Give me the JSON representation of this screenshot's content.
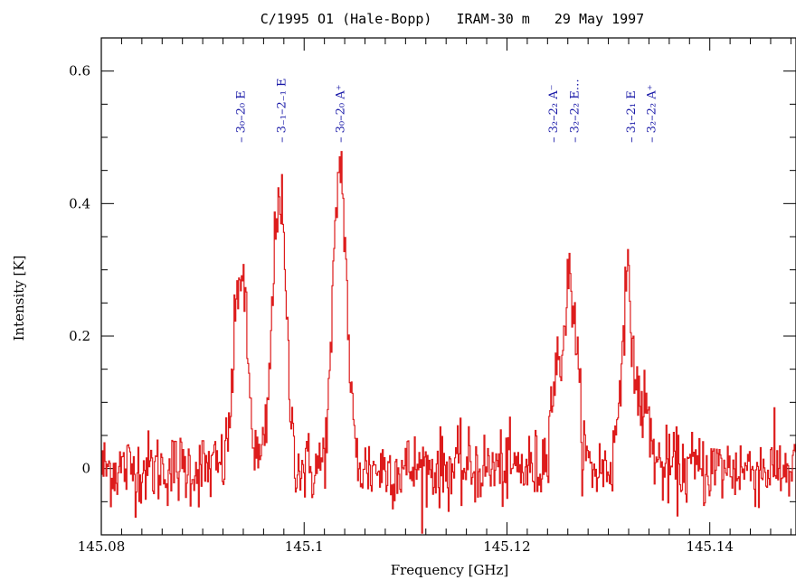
{
  "chart_data": {
    "type": "line",
    "title": "C/1995 O1 (Hale-Bopp)   IRAM-30 m   29 May 1997",
    "xlabel": "Frequency [GHz]",
    "ylabel": "Intensity [K]",
    "xlim": [
      145.08,
      145.1485
    ],
    "ylim": [
      -0.1,
      0.65
    ],
    "xticks": [
      145.08,
      145.1,
      145.12,
      145.14
    ],
    "xtick_labels": [
      "145.08",
      "145.1",
      "145.12",
      "145.14"
    ],
    "yticks": [
      0,
      0.2,
      0.4,
      0.6
    ],
    "ytick_labels": [
      "0",
      "0.2",
      "0.4",
      "0.6"
    ],
    "grid": false,
    "series_color": "#dd1c1c",
    "label_color": "#1a1aa8",
    "noise_rms": 0.028,
    "peaks": [
      {
        "x": 145.0937,
        "height": 0.3,
        "width": 0.00065
      },
      {
        "x": 145.0975,
        "height": 0.42,
        "width": 0.00065
      },
      {
        "x": 145.1035,
        "height": 0.46,
        "width": 0.00065
      },
      {
        "x": 145.1247,
        "height": 0.12,
        "width": 0.00055
      },
      {
        "x": 145.1262,
        "height": 0.28,
        "width": 0.00065
      },
      {
        "x": 145.1318,
        "height": 0.27,
        "width": 0.0006
      },
      {
        "x": 145.1335,
        "height": 0.09,
        "width": 0.0006
      }
    ],
    "line_labels": [
      {
        "x": 145.0937,
        "text": "– 3₀–2₀ E"
      },
      {
        "x": 145.0977,
        "text": "– 3₋₁–2₋₁ E"
      },
      {
        "x": 145.1035,
        "text": "– 3₀–2₀ A⁺"
      },
      {
        "x": 145.1245,
        "text": "– 3₂–2₂ A⁻"
      },
      {
        "x": 145.1266,
        "text": "– 3₂–2₂ E…"
      },
      {
        "x": 145.1322,
        "text": "– 3₁–2₁ E"
      },
      {
        "x": 145.1342,
        "text": "– 3₂–2₂ A⁺"
      }
    ]
  }
}
